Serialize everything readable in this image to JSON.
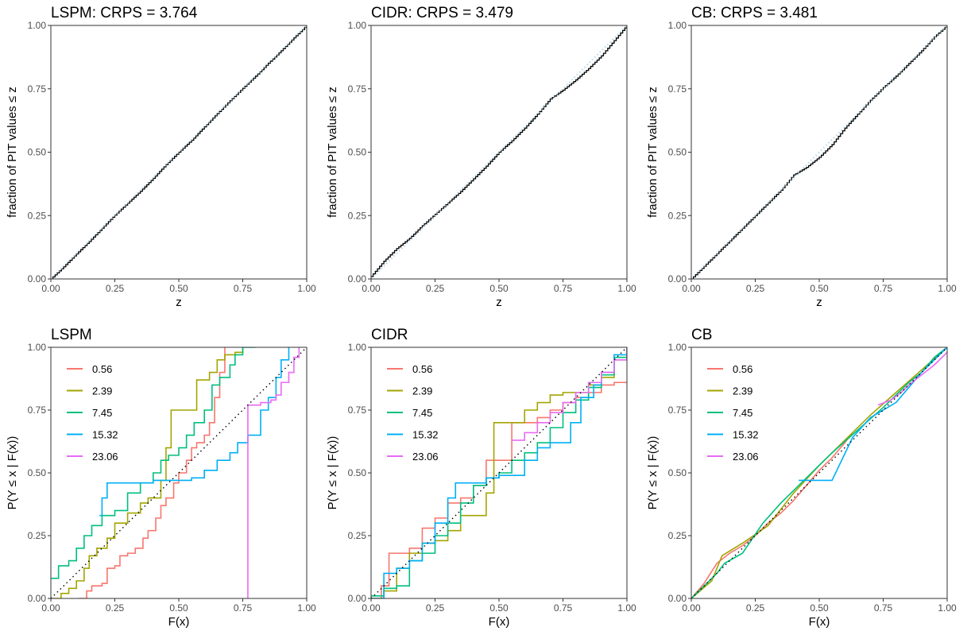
{
  "chart_data": [
    {
      "type": "line",
      "subtype": "pit-ecdf",
      "title": "LSPM: CRPS = 3.764",
      "xlabel": "z",
      "ylabel": "fraction of PIT values ≤ z",
      "xlim": [
        0,
        1
      ],
      "ylim": [
        0,
        1
      ],
      "xticks": [
        "0.00",
        "0.25",
        "0.50",
        "0.75",
        "1.00"
      ],
      "yticks": [
        "0.00",
        "0.25",
        "0.50",
        "0.75",
        "1.00"
      ],
      "grid": false,
      "legend": "none",
      "series": [
        {
          "color": "#000000",
          "style": "step",
          "x": [
            0,
            0.05,
            0.1,
            0.15,
            0.2,
            0.25,
            0.3,
            0.35,
            0.4,
            0.45,
            0.5,
            0.55,
            0.6,
            0.65,
            0.7,
            0.75,
            0.8,
            0.85,
            0.9,
            0.95,
            1.0
          ],
          "y": [
            0,
            0.048,
            0.099,
            0.148,
            0.2,
            0.252,
            0.299,
            0.346,
            0.397,
            0.451,
            0.5,
            0.547,
            0.6,
            0.652,
            0.703,
            0.752,
            0.8,
            0.851,
            0.9,
            0.951,
            1.0
          ]
        },
        {
          "color": "#a6cee3",
          "style": "dotted",
          "x": [
            0,
            1
          ],
          "y": [
            0,
            1
          ]
        }
      ]
    },
    {
      "type": "line",
      "subtype": "pit-ecdf",
      "title": "CIDR: CRPS = 3.479",
      "xlabel": "z",
      "ylabel": "fraction of PIT values ≤ z",
      "xlim": [
        0,
        1
      ],
      "ylim": [
        0,
        1
      ],
      "xticks": [
        "0.00",
        "0.25",
        "0.50",
        "0.75",
        "1.00"
      ],
      "yticks": [
        "0.00",
        "0.25",
        "0.50",
        "0.75",
        "1.00"
      ],
      "grid": false,
      "legend": "none",
      "series": [
        {
          "color": "#000000",
          "style": "step",
          "x": [
            0,
            0.05,
            0.1,
            0.15,
            0.2,
            0.25,
            0.3,
            0.35,
            0.4,
            0.45,
            0.5,
            0.55,
            0.6,
            0.65,
            0.7,
            0.75,
            0.8,
            0.85,
            0.9,
            0.95,
            1.0
          ],
          "y": [
            0.01,
            0.07,
            0.12,
            0.16,
            0.21,
            0.255,
            0.3,
            0.345,
            0.395,
            0.445,
            0.5,
            0.545,
            0.595,
            0.65,
            0.71,
            0.745,
            0.785,
            0.83,
            0.88,
            0.94,
            1.0
          ]
        },
        {
          "color": "#a6cee3",
          "style": "dotted",
          "x": [
            0,
            1
          ],
          "y": [
            0,
            1
          ]
        }
      ]
    },
    {
      "type": "line",
      "subtype": "pit-ecdf",
      "title": "CB: CRPS = 3.481",
      "xlabel": "z",
      "ylabel": "fraction of PIT values ≤ z",
      "xlim": [
        0,
        1
      ],
      "ylim": [
        0,
        1
      ],
      "xticks": [
        "0.00",
        "0.25",
        "0.50",
        "0.75",
        "1.00"
      ],
      "yticks": [
        "0.00",
        "0.25",
        "0.50",
        "0.75",
        "1.00"
      ],
      "grid": false,
      "legend": "none",
      "series": [
        {
          "color": "#000000",
          "style": "step",
          "x": [
            0,
            0.05,
            0.1,
            0.15,
            0.2,
            0.25,
            0.3,
            0.35,
            0.4,
            0.45,
            0.5,
            0.55,
            0.6,
            0.65,
            0.7,
            0.75,
            0.8,
            0.85,
            0.9,
            0.95,
            1.0
          ],
          "y": [
            0,
            0.05,
            0.1,
            0.15,
            0.2,
            0.25,
            0.3,
            0.35,
            0.41,
            0.44,
            0.48,
            0.53,
            0.595,
            0.65,
            0.705,
            0.755,
            0.8,
            0.85,
            0.9,
            0.955,
            1.0
          ]
        },
        {
          "color": "#a6cee3",
          "style": "dotted",
          "x": [
            0,
            1
          ],
          "y": [
            0,
            1
          ]
        }
      ]
    },
    {
      "type": "line",
      "subtype": "conditional-calibration",
      "title": "LSPM",
      "xlabel": "F(x)",
      "ylabel": "P(Y ≤ x | F(x))",
      "xlim": [
        0,
        1
      ],
      "ylim": [
        0,
        1
      ],
      "xticks": [
        "0.00",
        "0.25",
        "0.50",
        "0.75",
        "1.00"
      ],
      "yticks": [
        "0.00",
        "0.25",
        "0.50",
        "0.75",
        "1.00"
      ],
      "grid": false,
      "legend": "top-left",
      "reference_line": "dotted diagonal",
      "series": [
        {
          "name": "0.56",
          "color": "#f8766d",
          "x": [
            0.11,
            0.14,
            0.16,
            0.2,
            0.22,
            0.25,
            0.27,
            0.3,
            0.33,
            0.36,
            0.38,
            0.41,
            0.43,
            0.45,
            0.48,
            0.5,
            0.53,
            0.55,
            0.57,
            0.6,
            0.62,
            0.64,
            0.66,
            0.68
          ],
          "y": [
            0,
            0.03,
            0.05,
            0.06,
            0.12,
            0.13,
            0.17,
            0.18,
            0.2,
            0.24,
            0.27,
            0.32,
            0.37,
            0.4,
            0.46,
            0.5,
            0.55,
            0.6,
            0.62,
            0.65,
            0.7,
            0.8,
            0.9,
            1.0
          ]
        },
        {
          "name": "2.39",
          "color": "#a3a500",
          "x": [
            0,
            0.04,
            0.07,
            0.1,
            0.13,
            0.15,
            0.18,
            0.22,
            0.25,
            0.3,
            0.35,
            0.38,
            0.43,
            0.45,
            0.47,
            0.5,
            0.53,
            0.57,
            0.6,
            0.62,
            0.65,
            0.68,
            0.72,
            0.75
          ],
          "y": [
            0,
            0.02,
            0.04,
            0.07,
            0.12,
            0.17,
            0.2,
            0.24,
            0.3,
            0.34,
            0.38,
            0.4,
            0.47,
            0.6,
            0.75,
            0.75,
            0.75,
            0.87,
            0.87,
            0.9,
            0.95,
            0.97,
            0.98,
            1.0
          ]
        },
        {
          "name": "7.45",
          "color": "#00bf7d",
          "x": [
            0,
            0.03,
            0.07,
            0.1,
            0.13,
            0.16,
            0.2,
            0.25,
            0.3,
            0.35,
            0.4,
            0.43,
            0.46,
            0.5,
            0.53,
            0.56,
            0.6,
            0.63,
            0.66,
            0.7,
            0.72,
            0.75,
            0.8
          ],
          "y": [
            0.08,
            0.13,
            0.15,
            0.2,
            0.25,
            0.29,
            0.33,
            0.35,
            0.42,
            0.46,
            0.5,
            0.55,
            0.57,
            0.6,
            0.65,
            0.7,
            0.75,
            0.85,
            0.88,
            0.93,
            0.97,
            1.0,
            1.0
          ]
        },
        {
          "name": "15.32",
          "color": "#00b0f6",
          "x": [
            0.19,
            0.2,
            0.22,
            0.3,
            0.4,
            0.5,
            0.55,
            0.6,
            0.65,
            0.7,
            0.73,
            0.77,
            0.82,
            0.85,
            0.88,
            0.9,
            0.93
          ],
          "y": [
            0.33,
            0.4,
            0.46,
            0.46,
            0.47,
            0.47,
            0.48,
            0.51,
            0.55,
            0.58,
            0.62,
            0.65,
            0.75,
            0.8,
            0.88,
            0.95,
            1.0
          ]
        },
        {
          "name": "23.06",
          "color": "#e76bf3",
          "x": [
            0.77,
            0.77,
            0.77,
            0.82,
            0.86,
            0.88,
            0.9,
            0.93,
            0.95,
            0.97
          ],
          "y": [
            0,
            0.3,
            0.77,
            0.78,
            0.79,
            0.81,
            0.86,
            0.9,
            0.96,
            1.0
          ]
        }
      ]
    },
    {
      "type": "line",
      "subtype": "conditional-calibration",
      "title": "CIDR",
      "xlabel": "F(x)",
      "ylabel": "P(Y ≤ x | F(x))",
      "xlim": [
        0,
        1
      ],
      "ylim": [
        0,
        1
      ],
      "xticks": [
        "0.00",
        "0.25",
        "0.50",
        "0.75",
        "1.00"
      ],
      "yticks": [
        "0.00",
        "0.25",
        "0.50",
        "0.75",
        "1.00"
      ],
      "grid": false,
      "legend": "top-left",
      "reference_line": "dotted diagonal",
      "series": [
        {
          "name": "0.56",
          "color": "#f8766d",
          "x": [
            0,
            0.04,
            0.07,
            0.1,
            0.15,
            0.2,
            0.25,
            0.3,
            0.35,
            0.4,
            0.45,
            0.5,
            0.55,
            0.6,
            0.65,
            0.7,
            0.75,
            0.8,
            0.85,
            0.9,
            0.95,
            1.0
          ],
          "y": [
            0,
            0.05,
            0.18,
            0.18,
            0.2,
            0.28,
            0.32,
            0.38,
            0.4,
            0.45,
            0.55,
            0.55,
            0.7,
            0.7,
            0.72,
            0.75,
            0.78,
            0.8,
            0.82,
            0.85,
            0.86,
            0.86
          ]
        },
        {
          "name": "2.39",
          "color": "#a3a500",
          "x": [
            0,
            0.05,
            0.1,
            0.15,
            0.2,
            0.25,
            0.3,
            0.35,
            0.4,
            0.45,
            0.48,
            0.5,
            0.55,
            0.6,
            0.65,
            0.7,
            0.75,
            0.8,
            0.85,
            0.9,
            0.95,
            1.0
          ],
          "y": [
            0,
            0.03,
            0.12,
            0.18,
            0.22,
            0.23,
            0.27,
            0.33,
            0.33,
            0.42,
            0.7,
            0.7,
            0.7,
            0.75,
            0.78,
            0.81,
            0.82,
            0.82,
            0.85,
            0.88,
            0.95,
            1.0
          ]
        },
        {
          "name": "7.45",
          "color": "#00bf7d",
          "x": [
            0,
            0.05,
            0.1,
            0.15,
            0.2,
            0.25,
            0.3,
            0.35,
            0.4,
            0.45,
            0.5,
            0.55,
            0.6,
            0.65,
            0.7,
            0.75,
            0.8,
            0.85,
            0.9,
            0.95,
            1.0
          ],
          "y": [
            0.01,
            0.04,
            0.05,
            0.15,
            0.18,
            0.25,
            0.3,
            0.38,
            0.45,
            0.48,
            0.5,
            0.55,
            0.58,
            0.62,
            0.68,
            0.74,
            0.79,
            0.84,
            0.89,
            0.96,
            1.0
          ]
        },
        {
          "name": "15.32",
          "color": "#00b0f6",
          "x": [
            0,
            0.05,
            0.1,
            0.15,
            0.2,
            0.25,
            0.3,
            0.33,
            0.4,
            0.45,
            0.5,
            0.55,
            0.6,
            0.65,
            0.7,
            0.75,
            0.78,
            0.82,
            0.87,
            0.9,
            0.95,
            1.0
          ],
          "y": [
            0,
            0.1,
            0.12,
            0.15,
            0.22,
            0.3,
            0.4,
            0.46,
            0.46,
            0.48,
            0.49,
            0.49,
            0.55,
            0.6,
            0.62,
            0.62,
            0.7,
            0.8,
            0.85,
            0.9,
            0.97,
            1.0
          ]
        },
        {
          "name": "23.06",
          "color": "#e76bf3",
          "x": [
            0.55,
            0.6,
            0.65,
            0.7,
            0.75,
            0.8,
            0.85,
            0.9,
            0.95,
            1.0
          ],
          "y": [
            0.63,
            0.66,
            0.7,
            0.74,
            0.78,
            0.82,
            0.86,
            0.9,
            0.95,
            1.0
          ]
        }
      ]
    },
    {
      "type": "line",
      "subtype": "conditional-calibration",
      "title": "CB",
      "xlabel": "F(x)",
      "ylabel": "P(Y ≤ x | F(x))",
      "xlim": [
        0,
        1
      ],
      "ylim": [
        0,
        1
      ],
      "xticks": [
        "0.00",
        "0.25",
        "0.50",
        "0.75",
        "1.00"
      ],
      "yticks": [
        "0.00",
        "0.25",
        "0.50",
        "0.75",
        "1.00"
      ],
      "grid": false,
      "legend": "top-left",
      "reference_line": "dotted diagonal",
      "series": [
        {
          "name": "0.56",
          "color": "#f8766d",
          "x": [
            0,
            0.05,
            0.1,
            0.15,
            0.2,
            0.25,
            0.3,
            0.35,
            0.4,
            0.45,
            0.5,
            0.55,
            0.6,
            0.63
          ],
          "y": [
            0,
            0.06,
            0.14,
            0.18,
            0.21,
            0.25,
            0.3,
            0.34,
            0.39,
            0.45,
            0.51,
            0.56,
            0.62,
            0.66
          ]
        },
        {
          "name": "2.39",
          "color": "#a3a500",
          "x": [
            0,
            0.08,
            0.12,
            0.2,
            0.3,
            0.4,
            0.5,
            0.6,
            0.7,
            0.8,
            0.9,
            1.0
          ],
          "y": [
            0,
            0.07,
            0.17,
            0.22,
            0.29,
            0.42,
            0.53,
            0.63,
            0.73,
            0.82,
            0.91,
            1.0
          ]
        },
        {
          "name": "7.45",
          "color": "#00bf7d",
          "x": [
            0,
            0.1,
            0.13,
            0.2,
            0.28,
            0.35,
            0.45,
            0.55,
            0.65,
            0.75,
            0.85,
            0.9,
            0.95,
            1.0
          ],
          "y": [
            0,
            0.1,
            0.14,
            0.18,
            0.3,
            0.38,
            0.48,
            0.58,
            0.67,
            0.76,
            0.86,
            0.9,
            0.96,
            1.0
          ]
        },
        {
          "name": "15.32",
          "color": "#00b0f6",
          "x": [
            0.42,
            0.55,
            0.63,
            0.7,
            0.8,
            0.85,
            0.9,
            0.95,
            1.0
          ],
          "y": [
            0.47,
            0.47,
            0.64,
            0.72,
            0.78,
            0.84,
            0.9,
            0.95,
            1.0
          ]
        },
        {
          "name": "23.06",
          "color": "#e76bf3",
          "x": [
            0.73,
            0.78,
            0.82,
            0.85,
            0.9,
            0.95,
            1.0
          ],
          "y": [
            0.77,
            0.79,
            0.82,
            0.85,
            0.89,
            0.93,
            0.98
          ]
        }
      ]
    }
  ]
}
